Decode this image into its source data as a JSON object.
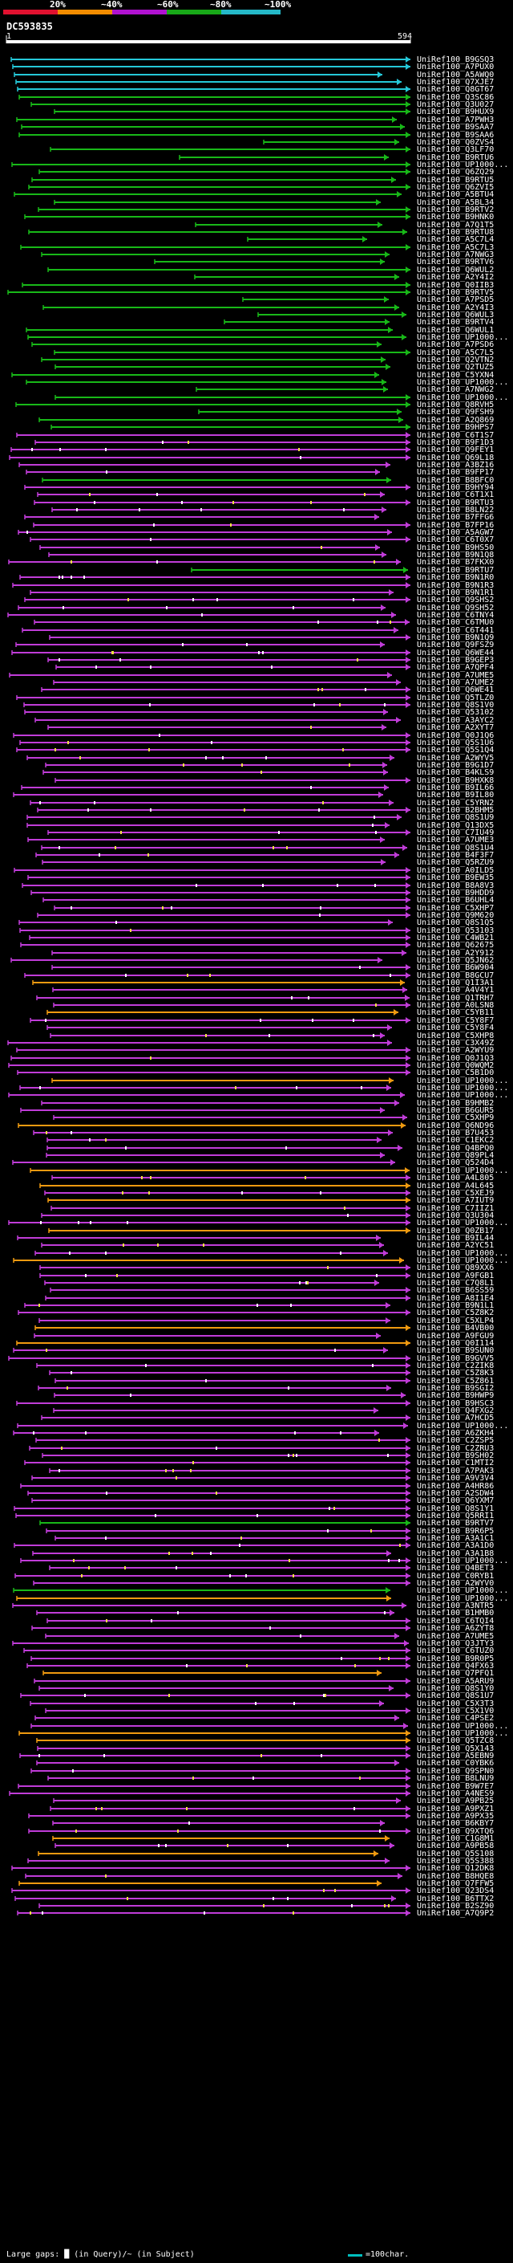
{
  "legend": {
    "labels": [
      "20%",
      "~40%",
      "~60%",
      "~80%",
      "~100%"
    ],
    "colors": [
      "#e0112f",
      "#f28c00",
      "#b012d0",
      "#18a818",
      "#25b8c8"
    ]
  },
  "query": {
    "id": "DC593835",
    "start": "1",
    "end": "594"
  },
  "footer": {
    "large_gaps": "Large gaps: █ (in Query)/~ (in Subject)",
    "scale": "=100char."
  },
  "hits": [
    {
      "label": "UniRef100_B9GSQ3",
      "color": "cyan"
    },
    {
      "label": "UniRef100_A7PUX0",
      "color": "cyan"
    },
    {
      "label": "UniRef100_A5AWQ0",
      "color": "cyan"
    },
    {
      "label": "UniRef100_Q7XJE7",
      "color": "cyan"
    },
    {
      "label": "UniRef100_Q8GT67",
      "color": "cyan"
    },
    {
      "label": "UniRef100_Q3SC86",
      "color": "green"
    },
    {
      "label": "UniRef100_Q3U027",
      "color": "green"
    },
    {
      "label": "UniRef100_B9HUX9",
      "color": "green"
    },
    {
      "label": "UniRef100_A7PWH3",
      "color": "green"
    },
    {
      "label": "UniRef100_B9SAA7",
      "color": "green"
    },
    {
      "label": "UniRef100_B9SAA6",
      "color": "green"
    },
    {
      "label": "UniRef100_Q0ZVS4",
      "color": "green"
    },
    {
      "label": "UniRef100_Q3LF70",
      "color": "green"
    },
    {
      "label": "UniRef100_B9RTU6",
      "color": "green"
    },
    {
      "label": "UniRef100_UP1000...",
      "color": "green"
    },
    {
      "label": "UniRef100_Q6ZQ29",
      "color": "green"
    },
    {
      "label": "UniRef100_B9RTU5",
      "color": "green"
    },
    {
      "label": "UniRef100_Q6ZVI5",
      "color": "green"
    },
    {
      "label": "UniRef100_A5BTU4",
      "color": "green"
    },
    {
      "label": "UniRef100_A5BL34",
      "color": "green"
    },
    {
      "label": "UniRef100_B9RTV2",
      "color": "green"
    },
    {
      "label": "UniRef100_B9HNK0",
      "color": "green"
    },
    {
      "label": "UniRef100_A7Q1T5",
      "color": "green"
    },
    {
      "label": "UniRef100_B9RTU8",
      "color": "green"
    },
    {
      "label": "UniRef100_A5C7L4",
      "color": "green"
    },
    {
      "label": "UniRef100_A5C7L3",
      "color": "green"
    },
    {
      "label": "UniRef100_A7NWG3",
      "color": "green"
    },
    {
      "label": "UniRef100_B9RTV6",
      "color": "green"
    },
    {
      "label": "UniRef100_Q6WUL2",
      "color": "green"
    },
    {
      "label": "UniRef100_A2Y4I2",
      "color": "green"
    },
    {
      "label": "UniRef100_Q0IIB3",
      "color": "green"
    },
    {
      "label": "UniRef100_B9RTV5",
      "color": "green"
    },
    {
      "label": "UniRef100_A7PSD5",
      "color": "green"
    },
    {
      "label": "UniRef100_A2Y4I3",
      "color": "green"
    },
    {
      "label": "UniRef100_Q6WUL3",
      "color": "green"
    },
    {
      "label": "UniRef100_B9RTV4",
      "color": "green"
    },
    {
      "label": "UniRef100_Q6WUL1",
      "color": "green"
    },
    {
      "label": "UniRef100_UP1000...",
      "color": "green"
    },
    {
      "label": "UniRef100_A7PSD6",
      "color": "green"
    },
    {
      "label": "UniRef100_A5C7L5",
      "color": "green"
    },
    {
      "label": "UniRef100_Q2VTN2",
      "color": "green"
    },
    {
      "label": "UniRef100_Q2TUZ5",
      "color": "green"
    },
    {
      "label": "UniRef100_C5YXN4",
      "color": "green"
    },
    {
      "label": "UniRef100_UP1000...",
      "color": "green"
    },
    {
      "label": "UniRef100_A7NWG2",
      "color": "green"
    },
    {
      "label": "UniRef100_UP1000...",
      "color": "green"
    },
    {
      "label": "UniRef100_Q8RVH5",
      "color": "green"
    },
    {
      "label": "UniRef100_Q9FSH9",
      "color": "green"
    },
    {
      "label": "UniRef100_A2Q869",
      "color": "green"
    },
    {
      "label": "UniRef100_B9HPS7",
      "color": "green"
    },
    {
      "label": "UniRef100_C6T1S7",
      "color": "magenta"
    },
    {
      "label": "UniRef100_B9F1D3",
      "color": "magenta"
    },
    {
      "label": "UniRef100_Q9FEY1",
      "color": "magenta"
    },
    {
      "label": "UniRef100_Q69L18",
      "color": "magenta"
    },
    {
      "label": "UniRef100_A3BZ16",
      "color": "magenta"
    },
    {
      "label": "UniRef100_B9FP17",
      "color": "magenta"
    },
    {
      "label": "UniRef100_B8BFC0",
      "color": "green"
    },
    {
      "label": "UniRef100_B9HY94",
      "color": "magenta"
    },
    {
      "label": "UniRef100_C6T1X1",
      "color": "magenta"
    },
    {
      "label": "UniRef100_B9RTU3",
      "color": "magenta"
    },
    {
      "label": "UniRef100_B8LN22",
      "color": "magenta"
    },
    {
      "label": "UniRef100_B7FFG6",
      "color": "magenta"
    },
    {
      "label": "UniRef100_B7FP16",
      "color": "magenta"
    },
    {
      "label": "UniRef100_A5AGW7",
      "color": "magenta"
    },
    {
      "label": "UniRef100_C6T0X7",
      "color": "magenta"
    },
    {
      "label": "UniRef100_B9HS50",
      "color": "magenta"
    },
    {
      "label": "UniRef100_B9N1Q8",
      "color": "magenta"
    },
    {
      "label": "UniRef100_B7FKX0",
      "color": "magenta"
    },
    {
      "label": "UniRef100_B9RTU7",
      "color": "green"
    },
    {
      "label": "UniRef100_B9N1R0",
      "color": "magenta"
    },
    {
      "label": "UniRef100_B9N1R3",
      "color": "magenta"
    },
    {
      "label": "UniRef100_B9N1R1",
      "color": "magenta"
    },
    {
      "label": "UniRef100_Q9SHS2",
      "color": "magenta"
    },
    {
      "label": "UniRef100_Q9SH52",
      "color": "magenta"
    },
    {
      "label": "UniRef100_C6TNY4",
      "color": "magenta"
    },
    {
      "label": "UniRef100_C6TMU0",
      "color": "magenta"
    },
    {
      "label": "UniRef100_C6T441",
      "color": "magenta"
    },
    {
      "label": "UniRef100_B9N1Q9",
      "color": "magenta"
    },
    {
      "label": "UniRef100_Q9FSZ9",
      "color": "magenta"
    },
    {
      "label": "UniRef100_Q6WE44",
      "color": "magenta"
    },
    {
      "label": "UniRef100_B9GEP3",
      "color": "magenta"
    },
    {
      "label": "UniRef100_A7QPF4",
      "color": "magenta"
    },
    {
      "label": "UniRef100_A7UME5",
      "color": "magenta"
    },
    {
      "label": "UniRef100_A7UME2",
      "color": "magenta"
    },
    {
      "label": "UniRef100_Q6WE41",
      "color": "magenta"
    },
    {
      "label": "UniRef100_Q5TLZ0",
      "color": "magenta"
    },
    {
      "label": "UniRef100_Q8S1V0",
      "color": "magenta"
    },
    {
      "label": "UniRef100_Q53102",
      "color": "magenta"
    },
    {
      "label": "UniRef100_A3AYC2",
      "color": "magenta"
    },
    {
      "label": "UniRef100_A2XYT7",
      "color": "magenta"
    },
    {
      "label": "UniRef100_Q0J1Q6",
      "color": "magenta"
    },
    {
      "label": "UniRef100_Q5S1U6",
      "color": "magenta"
    },
    {
      "label": "UniRef100_Q5S1Q4",
      "color": "magenta"
    },
    {
      "label": "UniRef100_A2WYV5",
      "color": "magenta"
    },
    {
      "label": "UniRef100_B9G1D7",
      "color": "magenta"
    },
    {
      "label": "UniRef100_B4KLS9",
      "color": "magenta"
    },
    {
      "label": "UniRef100_B9HXK8",
      "color": "magenta"
    },
    {
      "label": "UniRef100_B9IL66",
      "color": "magenta"
    },
    {
      "label": "UniRef100_B9IL80",
      "color": "magenta"
    },
    {
      "label": "UniRef100_C5YRN2",
      "color": "magenta"
    },
    {
      "label": "UniRef100_B2BHM5",
      "color": "magenta"
    },
    {
      "label": "UniRef100_Q8S1U9",
      "color": "magenta"
    },
    {
      "label": "UniRef100_Q13DX5",
      "color": "magenta"
    },
    {
      "label": "UniRef100_C7IU49",
      "color": "magenta"
    },
    {
      "label": "UniRef100_A7UME3",
      "color": "magenta"
    },
    {
      "label": "UniRef100_Q8S1U4",
      "color": "magenta"
    },
    {
      "label": "UniRef100_B4F3F7",
      "color": "magenta"
    },
    {
      "label": "UniRef100_Q5RZU9",
      "color": "magenta"
    },
    {
      "label": "UniRef100_A0ILD5",
      "color": "magenta"
    },
    {
      "label": "UniRef100_B9EW35",
      "color": "magenta"
    },
    {
      "label": "UniRef100_B8A8V3",
      "color": "magenta"
    },
    {
      "label": "UniRef100_B9HDD9",
      "color": "magenta"
    },
    {
      "label": "UniRef100_B6UHL4",
      "color": "magenta"
    },
    {
      "label": "UniRef100_C5XHP7",
      "color": "magenta"
    },
    {
      "label": "UniRef100_Q9M620",
      "color": "magenta"
    },
    {
      "label": "UniRef100_Q8S1Q5",
      "color": "magenta"
    },
    {
      "label": "UniRef100_Q53103",
      "color": "magenta"
    },
    {
      "label": "UniRef100_C4WB21",
      "color": "magenta"
    },
    {
      "label": "UniRef100_Q62675",
      "color": "magenta"
    },
    {
      "label": "UniRef100_A2Y912",
      "color": "magenta"
    },
    {
      "label": "UniRef100_Q5JN62",
      "color": "magenta"
    },
    {
      "label": "UniRef100_B6W904",
      "color": "magenta"
    },
    {
      "label": "UniRef100_B8GCU7",
      "color": "magenta"
    },
    {
      "label": "UniRef100_Q1I3A1",
      "color": "orange"
    },
    {
      "label": "UniRef100_A4V4Y1",
      "color": "magenta"
    },
    {
      "label": "UniRef100_Q1TRH7",
      "color": "magenta"
    },
    {
      "label": "UniRef100_A0LSN8",
      "color": "magenta"
    },
    {
      "label": "UniRef100_C5YB11",
      "color": "orange"
    },
    {
      "label": "UniRef100_C5Y8F7",
      "color": "magenta"
    },
    {
      "label": "UniRef100_C5Y8F4",
      "color": "magenta"
    },
    {
      "label": "UniRef100_C5XHP8",
      "color": "magenta"
    },
    {
      "label": "UniRef100_C3X49Z",
      "color": "magenta"
    },
    {
      "label": "UniRef100_A2WYU9",
      "color": "magenta"
    },
    {
      "label": "UniRef100_Q0J1Q3",
      "color": "magenta"
    },
    {
      "label": "UniRef100_Q0WQM2",
      "color": "magenta"
    },
    {
      "label": "UniRef100_C5B1D0",
      "color": "magenta"
    },
    {
      "label": "UniRef100_UP1000...",
      "color": "orange"
    },
    {
      "label": "UniRef100_UP1000...",
      "color": "magenta"
    },
    {
      "label": "UniRef100_UP1000...",
      "color": "magenta"
    },
    {
      "label": "UniRef100_B9HMB2",
      "color": "magenta"
    },
    {
      "label": "UniRef100_B6GUR5",
      "color": "magenta"
    },
    {
      "label": "UniRef100_C5XHP9",
      "color": "magenta"
    },
    {
      "label": "UniRef100_Q6ND96",
      "color": "orange"
    },
    {
      "label": "UniRef100_B7U453",
      "color": "magenta"
    },
    {
      "label": "UniRef100_C1EKC2",
      "color": "magenta"
    },
    {
      "label": "UniRef100_Q4BPQ0",
      "color": "magenta"
    },
    {
      "label": "UniRef100_Q89PL4",
      "color": "magenta"
    },
    {
      "label": "UniRef100_Q524D4",
      "color": "magenta"
    },
    {
      "label": "UniRef100_UP1000...",
      "color": "orange"
    },
    {
      "label": "UniRef100_A4L805",
      "color": "magenta"
    },
    {
      "label": "UniRef100_A4L645",
      "color": "orange"
    },
    {
      "label": "UniRef100_C5XEJ9",
      "color": "magenta"
    },
    {
      "label": "UniRef100_A7IUT9",
      "color": "orange"
    },
    {
      "label": "UniRef100_C7IIZ1",
      "color": "magenta"
    },
    {
      "label": "UniRef100_Q3U304",
      "color": "magenta"
    },
    {
      "label": "UniRef100_UP1000...",
      "color": "magenta"
    },
    {
      "label": "UniRef100_Q0ZB17",
      "color": "orange"
    },
    {
      "label": "UniRef100_B9IL44",
      "color": "magenta"
    },
    {
      "label": "UniRef100_A2YC51",
      "color": "magenta"
    },
    {
      "label": "UniRef100_UP1000...",
      "color": "magenta"
    },
    {
      "label": "UniRef100_UP1000...",
      "color": "orange"
    },
    {
      "label": "UniRef100_Q89XX6",
      "color": "magenta"
    },
    {
      "label": "UniRef100_A9FGB1",
      "color": "magenta"
    },
    {
      "label": "UniRef100_C7Q8L1",
      "color": "magenta"
    },
    {
      "label": "UniRef100_B6SS59",
      "color": "magenta"
    },
    {
      "label": "UniRef100_A8I1E4",
      "color": "magenta"
    },
    {
      "label": "UniRef100_B9N1L1",
      "color": "magenta"
    },
    {
      "label": "UniRef100_C5Z8K2",
      "color": "magenta"
    },
    {
      "label": "UniRef100_C5XLP4",
      "color": "magenta"
    },
    {
      "label": "UniRef100_B4VB00",
      "color": "orange"
    },
    {
      "label": "UniRef100_A9FGU9",
      "color": "magenta"
    },
    {
      "label": "UniRef100_Q0I114",
      "color": "orange"
    },
    {
      "label": "UniRef100_B9SUN0",
      "color": "magenta"
    },
    {
      "label": "UniRef100_B9GVV5",
      "color": "magenta"
    },
    {
      "label": "UniRef100_C2ZIK8",
      "color": "magenta"
    },
    {
      "label": "UniRef100_C5Z8K3",
      "color": "magenta"
    },
    {
      "label": "UniRef100_C5Z861",
      "color": "magenta"
    },
    {
      "label": "UniRef100_B9SGI2",
      "color": "magenta"
    },
    {
      "label": "UniRef100_B9HWP9",
      "color": "magenta"
    },
    {
      "label": "UniRef100_B9HSC3",
      "color": "magenta"
    },
    {
      "label": "UniRef100_Q4FXG2",
      "color": "magenta"
    },
    {
      "label": "UniRef100_A7HCD5",
      "color": "magenta"
    },
    {
      "label": "UniRef100_UP1000...",
      "color": "magenta"
    },
    {
      "label": "UniRef100_A6ZKH4",
      "color": "magenta"
    },
    {
      "label": "UniRef100_C2ZSP5",
      "color": "magenta"
    },
    {
      "label": "UniRef100_C2ZRU3",
      "color": "magenta"
    },
    {
      "label": "UniRef100_B9SH02",
      "color": "magenta"
    },
    {
      "label": "UniRef100_C1MTI2",
      "color": "magenta"
    },
    {
      "label": "UniRef100_A7PAK3",
      "color": "magenta"
    },
    {
      "label": "UniRef100_A9V3V4",
      "color": "magenta"
    },
    {
      "label": "UniRef100_A4HR86",
      "color": "magenta"
    },
    {
      "label": "UniRef100_A2SDW4",
      "color": "magenta"
    },
    {
      "label": "UniRef100_Q6YXM7",
      "color": "magenta"
    },
    {
      "label": "UniRef100_Q8S1Y1",
      "color": "magenta"
    },
    {
      "label": "UniRef100_Q5RRI1",
      "color": "magenta"
    },
    {
      "label": "UniRef100_B9RTV7",
      "color": "green"
    },
    {
      "label": "UniRef100_B9R6P5",
      "color": "magenta"
    },
    {
      "label": "UniRef100_A3A1C1",
      "color": "magenta"
    },
    {
      "label": "UniRef100_A3A1D0",
      "color": "magenta"
    },
    {
      "label": "UniRef100_A3A1B8",
      "color": "magenta"
    },
    {
      "label": "UniRef100_UP1000...",
      "color": "magenta"
    },
    {
      "label": "UniRef100_Q4BET3",
      "color": "magenta"
    },
    {
      "label": "UniRef100_C0RYB1",
      "color": "magenta"
    },
    {
      "label": "UniRef100_A2WYV0",
      "color": "magenta"
    },
    {
      "label": "UniRef100_UP1000...",
      "color": "green"
    },
    {
      "label": "UniRef100_UP1000...",
      "color": "orange"
    },
    {
      "label": "UniRef100_A3NTR5",
      "color": "magenta"
    },
    {
      "label": "UniRef100_B1HMB0",
      "color": "magenta"
    },
    {
      "label": "UniRef100_C6TQI4",
      "color": "magenta"
    },
    {
      "label": "UniRef100_A6ZYT8",
      "color": "magenta"
    },
    {
      "label": "UniRef100_A7UME5",
      "color": "magenta"
    },
    {
      "label": "UniRef100_Q3JTY3",
      "color": "magenta"
    },
    {
      "label": "UniRef100_C6TUZ0",
      "color": "magenta"
    },
    {
      "label": "UniRef100_B9R0P5",
      "color": "magenta"
    },
    {
      "label": "UniRef100_Q4FX63",
      "color": "magenta"
    },
    {
      "label": "UniRef100_Q7PFQ1",
      "color": "orange"
    },
    {
      "label": "UniRef100_A5ARU9",
      "color": "magenta"
    },
    {
      "label": "UniRef100_Q8S1Y0",
      "color": "magenta"
    },
    {
      "label": "UniRef100_Q8S1U7",
      "color": "magenta"
    },
    {
      "label": "UniRef100_C5X3T3",
      "color": "magenta"
    },
    {
      "label": "UniRef100_C5X1V0",
      "color": "magenta"
    },
    {
      "label": "UniRef100_C4PSE2",
      "color": "magenta"
    },
    {
      "label": "UniRef100_UP1000...",
      "color": "magenta"
    },
    {
      "label": "UniRef100_UP1000...",
      "color": "orange"
    },
    {
      "label": "UniRef100_Q5TZC8",
      "color": "orange"
    },
    {
      "label": "UniRef100_Q5X143",
      "color": "magenta"
    },
    {
      "label": "UniRef100_A5EBN9",
      "color": "magenta"
    },
    {
      "label": "UniRef100_C0YBK6",
      "color": "magenta"
    },
    {
      "label": "UniRef100_Q9SPN0",
      "color": "magenta"
    },
    {
      "label": "UniRef100_B8LNU9",
      "color": "magenta"
    },
    {
      "label": "UniRef100_B9W7E7",
      "color": "magenta"
    },
    {
      "label": "UniRef100_A4NES9",
      "color": "magenta"
    },
    {
      "label": "UniRef100_A9PB25",
      "color": "magenta"
    },
    {
      "label": "UniRef100_A9PXZ1",
      "color": "magenta"
    },
    {
      "label": "UniRef100_A9PX35",
      "color": "magenta"
    },
    {
      "label": "UniRef100_B6KBY7",
      "color": "magenta"
    },
    {
      "label": "UniRef100_Q9XTQ6",
      "color": "magenta"
    },
    {
      "label": "UniRef100_C1G8M1",
      "color": "orange"
    },
    {
      "label": "UniRef100_A9PB58",
      "color": "magenta"
    },
    {
      "label": "UniRef100_Q5S108",
      "color": "orange"
    },
    {
      "label": "UniRef100_Q5S388",
      "color": "magenta"
    },
    {
      "label": "UniRef100_Q12DK8",
      "color": "magenta"
    },
    {
      "label": "UniRef100_B8HQE8",
      "color": "magenta"
    },
    {
      "label": "UniRef100_Q7FFW5",
      "color": "orange"
    },
    {
      "label": "UniRef100_Q23DS4",
      "color": "magenta"
    },
    {
      "label": "UniRef100_B6TTX2",
      "color": "magenta"
    },
    {
      "label": "UniRef100_B2SZ90",
      "color": "magenta"
    },
    {
      "label": "UniRef100_A7Q9P2",
      "color": "magenta"
    }
  ]
}
